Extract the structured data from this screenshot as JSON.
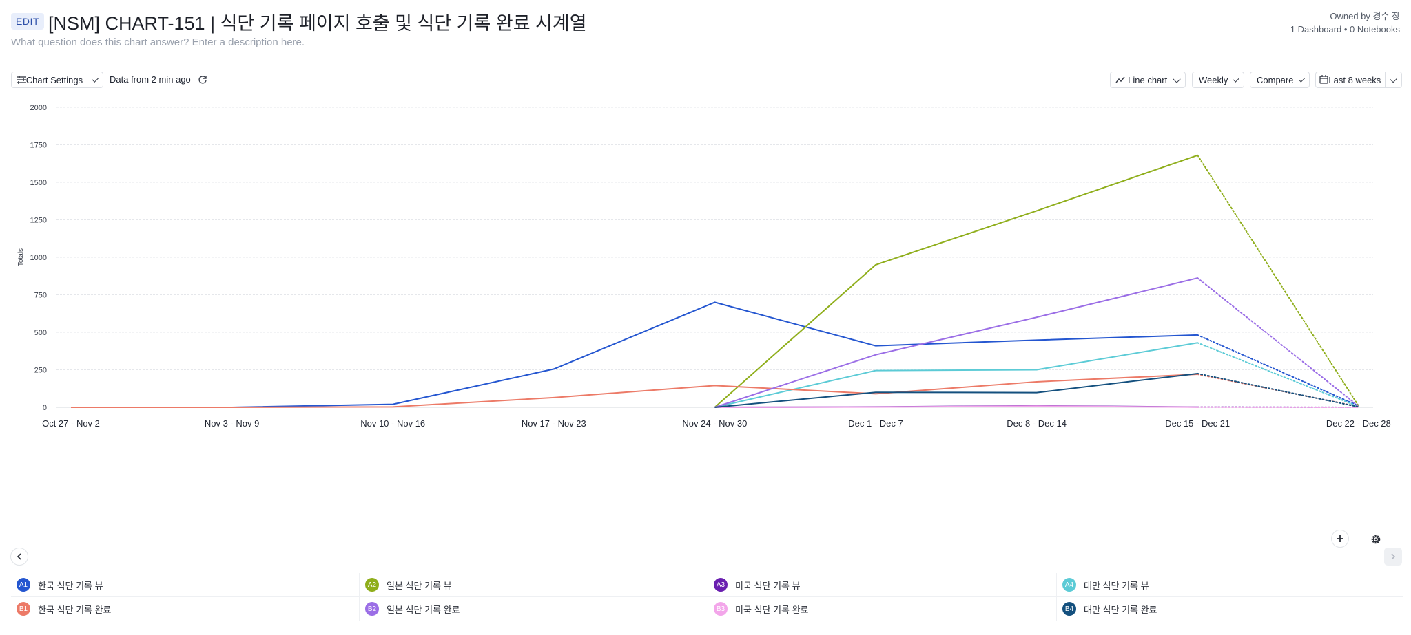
{
  "header": {
    "edit_label": "EDIT",
    "title": "[NSM] CHART-151 | 식단 기록 페이지 호출 및 식단 기록 완료 시계열",
    "description_placeholder": "What question does this chart answer? Enter a description here.",
    "owner": "Owned by 경수 장",
    "usage": "1 Dashboard • 0 Notebooks"
  },
  "toolbar": {
    "settings_label": "Chart Settings",
    "data_freshness": "Data from 2 min ago",
    "chart_type_label": "Line chart",
    "interval_label": "Weekly",
    "compare_label": "Compare",
    "range_label": "Last 8 weeks"
  },
  "icons": {
    "settings": "sliders-icon",
    "refresh": "refresh-icon",
    "chart_type": "line-chart-icon",
    "range": "calendar-icon",
    "add": "plus-icon",
    "gear": "gear-icon",
    "prev": "chevron-left-icon",
    "next": "chevron-right-icon"
  },
  "chart_data": {
    "type": "line",
    "xlabel": "",
    "ylabel": "Totals",
    "ylim": [
      0,
      2000
    ],
    "yticks": [
      0,
      250,
      500,
      750,
      1000,
      1250,
      1500,
      1750,
      2000
    ],
    "grid": true,
    "categories": [
      "Oct 27 - Nov 2",
      "Nov 3 - Nov 9",
      "Nov 10 - Nov 16",
      "Nov 17 - Nov 23",
      "Nov 24 - Nov 30",
      "Dec 1 - Dec 7",
      "Dec 8 - Dec 14",
      "Dec 15 - Dec 21",
      "Dec 22 - Dec 28"
    ],
    "incomplete_last_period": true,
    "legend_position": "bottom",
    "series": [
      {
        "code": "A1",
        "name": "한국 식단 기록 뷰",
        "color": "#2456d0",
        "values": [
          0,
          0,
          20,
          255,
          700,
          410,
          448,
          482,
          10
        ]
      },
      {
        "code": "A2",
        "name": "일본 식단 기록 뷰",
        "color": "#8fae1b",
        "values": [
          null,
          null,
          null,
          null,
          0,
          950,
          1310,
          1680,
          10
        ]
      },
      {
        "code": "A3",
        "name": "미국 식단 기록 뷰",
        "color": "#6a1fb0",
        "values": [
          null,
          null,
          null,
          null,
          0,
          3,
          10,
          2,
          0
        ]
      },
      {
        "code": "A4",
        "name": "대만 식단 기록 뷰",
        "color": "#5ccbd6",
        "values": [
          null,
          null,
          null,
          null,
          0,
          245,
          250,
          430,
          5
        ]
      },
      {
        "code": "B1",
        "name": "한국 식단 기록 완료",
        "color": "#ec7a67",
        "values": [
          0,
          0,
          3,
          65,
          145,
          90,
          170,
          220,
          5
        ]
      },
      {
        "code": "B2",
        "name": "일본 식단 기록 완료",
        "color": "#9b6ee6",
        "values": [
          null,
          null,
          null,
          null,
          0,
          350,
          600,
          862,
          8
        ]
      },
      {
        "code": "B3",
        "name": "미국 식단 기록 완료",
        "color": "#f3a6ea",
        "values": [
          null,
          null,
          null,
          null,
          0,
          2,
          8,
          1,
          0
        ]
      },
      {
        "code": "B4",
        "name": "대만 식단 기록 완료",
        "color": "#14507e",
        "values": [
          null,
          null,
          null,
          null,
          0,
          100,
          98,
          225,
          3
        ]
      }
    ]
  }
}
